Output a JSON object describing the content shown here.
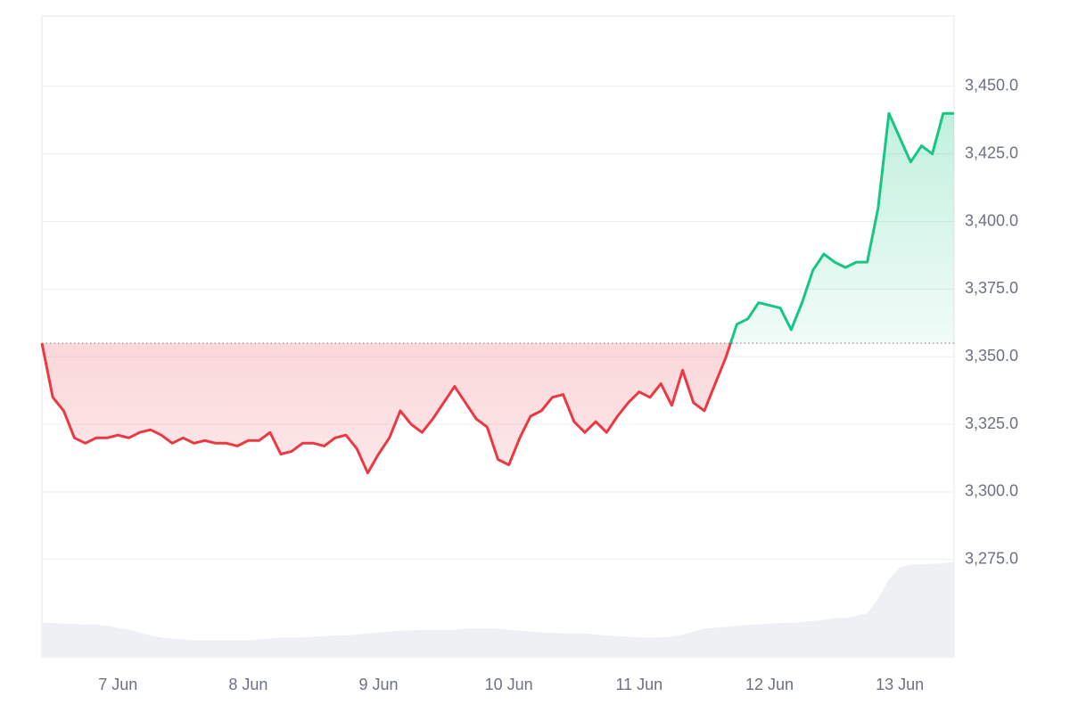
{
  "chart_data": {
    "type": "line",
    "categories": [
      null,
      null,
      null,
      null,
      null,
      null,
      null,
      "7 Jun",
      null,
      null,
      null,
      null,
      null,
      null,
      null,
      null,
      null,
      null,
      null,
      "8 Jun",
      null,
      null,
      null,
      null,
      null,
      null,
      null,
      null,
      null,
      null,
      null,
      "9 Jun",
      null,
      null,
      null,
      null,
      null,
      null,
      null,
      null,
      null,
      null,
      null,
      "10 Jun",
      null,
      null,
      null,
      null,
      null,
      null,
      null,
      null,
      null,
      null,
      null,
      "11 Jun",
      null,
      null,
      null,
      null,
      null,
      null,
      null,
      null,
      null,
      null,
      null,
      "12 Jun",
      null,
      null,
      null,
      null,
      null,
      null,
      null,
      null,
      null,
      null,
      null,
      "13 Jun",
      null,
      null,
      null,
      null,
      null
    ],
    "values": [
      3355,
      3335,
      3330,
      3320,
      3318,
      3320,
      3320,
      3321,
      3320,
      3322,
      3323,
      3321,
      3318,
      3320,
      3318,
      3319,
      3318,
      3318,
      3317,
      3319,
      3319,
      3322,
      3314,
      3315,
      3318,
      3318,
      3317,
      3320,
      3321,
      3316,
      3307,
      3314,
      3320,
      3330,
      3325,
      3322,
      3327,
      3333,
      3339,
      3333,
      3327,
      3324,
      3312,
      3310,
      3320,
      3328,
      3330,
      3335,
      3336,
      3326,
      3322,
      3326,
      3322,
      3328,
      3333,
      3337,
      3335,
      3340,
      3332,
      3345,
      3333,
      3330,
      3340,
      3350,
      3362,
      3364,
      3370,
      3369,
      3368,
      3360,
      3370,
      3382,
      3388,
      3385,
      3383,
      3385,
      3385,
      3405,
      3440,
      3431,
      3422,
      3428,
      3425,
      3440,
      3440
    ],
    "up_color": "#16c784",
    "down_color": "#ea3943",
    "volume": [
      35,
      35,
      34,
      34,
      33,
      33,
      32,
      30,
      28,
      25,
      22,
      20,
      19,
      18,
      17,
      17,
      17,
      17,
      17,
      17,
      18,
      19,
      20,
      20,
      20,
      21,
      21,
      22,
      22,
      23,
      24,
      25,
      26,
      27,
      27,
      28,
      28,
      28,
      28,
      29,
      29,
      29,
      29,
      28,
      27,
      26,
      25,
      25,
      24,
      24,
      24,
      23,
      22,
      21,
      21,
      20,
      20,
      20,
      21,
      23,
      26,
      29,
      30,
      31,
      32,
      33,
      33,
      34,
      35,
      35,
      36,
      37,
      38,
      40,
      40,
      42,
      45,
      60,
      80,
      92,
      95,
      95,
      96,
      96,
      98
    ],
    "volume_color": "#eef0f4",
    "y2lim": [
      0,
      100
    ],
    "ylim": [
      3239,
      3476
    ],
    "yticks": [
      {
        "value": 3275,
        "label": "3,275.0"
      },
      {
        "value": 3300,
        "label": "3,300.0"
      },
      {
        "value": 3325,
        "label": "3,325.0"
      },
      {
        "value": 3350,
        "label": "3,350.0"
      },
      {
        "value": 3375,
        "label": "3,375.0"
      },
      {
        "value": 3400,
        "label": "3,400.0"
      },
      {
        "value": 3425,
        "label": "3,425.0"
      },
      {
        "value": 3450,
        "label": "3,450.0"
      }
    ],
    "grid": true
  }
}
